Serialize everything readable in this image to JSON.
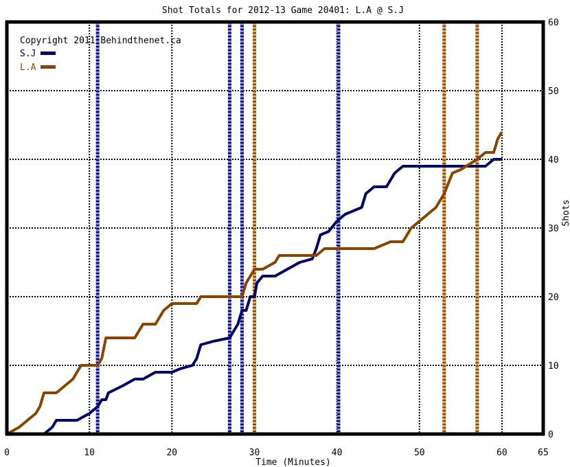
{
  "chart_data": {
    "type": "line",
    "title": "Shot Totals for 2012-13 Game 20401: L.A @ S.J",
    "xlabel": "Time (Minutes)",
    "ylabel": "Shots",
    "copyright": "Copyright 2011 Behindthenet.ca",
    "xlim": [
      0,
      65
    ],
    "ylim": [
      0,
      60
    ],
    "x_ticks": [
      0,
      10,
      20,
      30,
      40,
      50,
      60,
      65
    ],
    "y_ticks": [
      0,
      10,
      20,
      30,
      40,
      50,
      60
    ],
    "grid": true,
    "legend_position": "top-left",
    "series": [
      {
        "name": "S.J",
        "color": "#000066",
        "values": [
          [
            0,
            0
          ],
          [
            4.5,
            0
          ],
          [
            5.5,
            1
          ],
          [
            6,
            2
          ],
          [
            8.5,
            2
          ],
          [
            10,
            3
          ],
          [
            11,
            4
          ],
          [
            11.5,
            5
          ],
          [
            12,
            5
          ],
          [
            12.3,
            6
          ],
          [
            14,
            7
          ],
          [
            15.5,
            8
          ],
          [
            16.5,
            8
          ],
          [
            18,
            9
          ],
          [
            20,
            9
          ],
          [
            21,
            9.5
          ],
          [
            22.5,
            10
          ],
          [
            23,
            11
          ],
          [
            23.5,
            13
          ],
          [
            25,
            13.5
          ],
          [
            27,
            14
          ],
          [
            27.5,
            15
          ],
          [
            28,
            16
          ],
          [
            28.5,
            18
          ],
          [
            29,
            18
          ],
          [
            29.5,
            20
          ],
          [
            30,
            20
          ],
          [
            30.3,
            22
          ],
          [
            31,
            23
          ],
          [
            32.5,
            23
          ],
          [
            34,
            24
          ],
          [
            35.5,
            25
          ],
          [
            37,
            25.5
          ],
          [
            37.5,
            27
          ],
          [
            38,
            29
          ],
          [
            39,
            29.5
          ],
          [
            40,
            31
          ],
          [
            41,
            32
          ],
          [
            43,
            33
          ],
          [
            43.5,
            35
          ],
          [
            44.5,
            36
          ],
          [
            46,
            36
          ],
          [
            47,
            38
          ],
          [
            48,
            39
          ],
          [
            58,
            39
          ],
          [
            59,
            40
          ],
          [
            60,
            40
          ]
        ]
      },
      {
        "name": "L.A",
        "color": "#884400",
        "values": [
          [
            0,
            0
          ],
          [
            1.5,
            1
          ],
          [
            2.5,
            2
          ],
          [
            3.5,
            3
          ],
          [
            4,
            4
          ],
          [
            4.5,
            6
          ],
          [
            6,
            6
          ],
          [
            7,
            7
          ],
          [
            8,
            8
          ],
          [
            8.5,
            9
          ],
          [
            9,
            10
          ],
          [
            11,
            10
          ],
          [
            11.5,
            11
          ],
          [
            12,
            14
          ],
          [
            15.5,
            14
          ],
          [
            16.5,
            16
          ],
          [
            18,
            16
          ],
          [
            19,
            18
          ],
          [
            20,
            19
          ],
          [
            23,
            19
          ],
          [
            23.5,
            20
          ],
          [
            28.5,
            20
          ],
          [
            29,
            22
          ],
          [
            29.5,
            23
          ],
          [
            30,
            24
          ],
          [
            31,
            24
          ],
          [
            32.5,
            25
          ],
          [
            33,
            26
          ],
          [
            37.5,
            26
          ],
          [
            38.5,
            27
          ],
          [
            44.5,
            27
          ],
          [
            46.5,
            28
          ],
          [
            48,
            28
          ],
          [
            48.5,
            29
          ],
          [
            49,
            30
          ],
          [
            50,
            31
          ],
          [
            51,
            32
          ],
          [
            52,
            33
          ],
          [
            52.5,
            34
          ],
          [
            53,
            35
          ],
          [
            54,
            38
          ],
          [
            55,
            38.5
          ],
          [
            57,
            40
          ],
          [
            58,
            41
          ],
          [
            59,
            41
          ],
          [
            59.5,
            43
          ],
          [
            60,
            44
          ]
        ]
      }
    ],
    "event_lines": [
      {
        "team": "S.J",
        "x": [
          11,
          27,
          28.5,
          40.2
        ]
      },
      {
        "team": "L.A",
        "x": [
          30,
          53,
          57
        ]
      }
    ]
  }
}
